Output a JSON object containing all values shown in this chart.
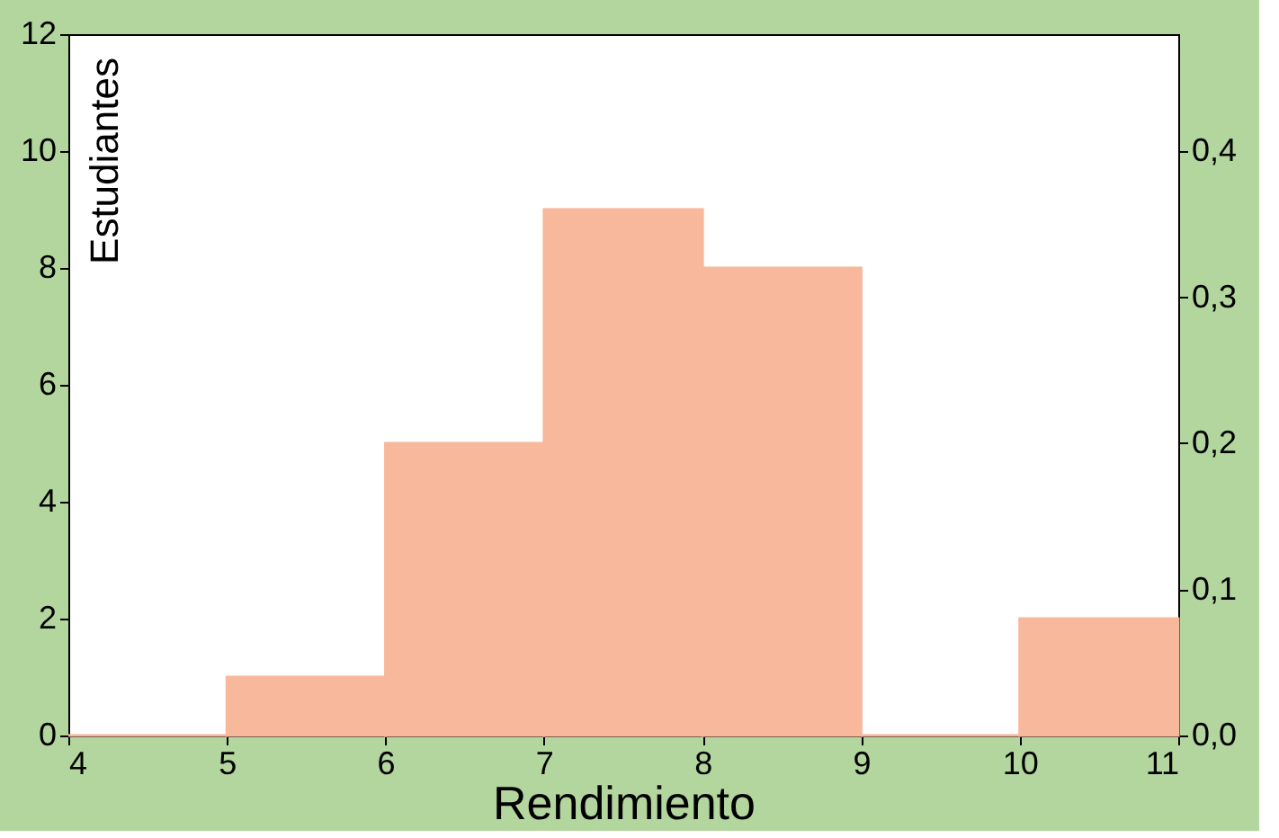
{
  "chart_data": {
    "type": "histogram",
    "xlabel": "Rendimiento",
    "ylabel": "Estudiantes",
    "bins": [
      4,
      5,
      6,
      7,
      8,
      9,
      10,
      11
    ],
    "values": [
      0,
      1,
      5,
      9,
      8,
      0,
      2
    ],
    "color": "#f7b89c",
    "xlim": [
      4,
      11
    ],
    "xticks": [
      4,
      5,
      6,
      7,
      8,
      9,
      10,
      11
    ],
    "ylim": [
      0,
      12
    ],
    "yticks": [
      0,
      2,
      4,
      6,
      8,
      10,
      12
    ],
    "y2lim": [
      0,
      0.48
    ],
    "y2ticks": [
      {
        "value": 0,
        "label": "0,0"
      },
      {
        "value": 0.1,
        "label": "0,1"
      },
      {
        "value": 0.2,
        "label": "0,2"
      },
      {
        "value": 0.3,
        "label": "0,3"
      },
      {
        "value": 0.4,
        "label": "0,4"
      }
    ],
    "grid": false
  }
}
